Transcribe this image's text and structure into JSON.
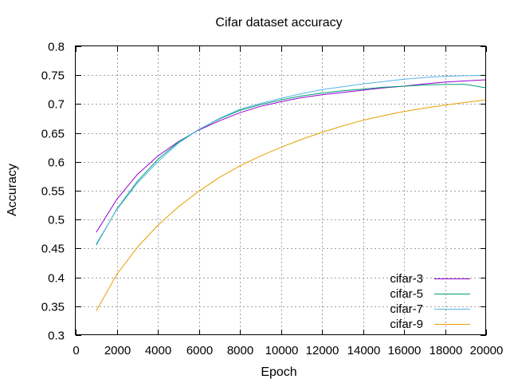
{
  "chart_data": {
    "type": "line",
    "title": "Cifar dataset accuracy",
    "xlabel": "Epoch",
    "ylabel": "Accuracy",
    "xlim": [
      0,
      20000
    ],
    "ylim": [
      0.3,
      0.8
    ],
    "xticks": [
      0,
      2000,
      4000,
      6000,
      8000,
      10000,
      12000,
      14000,
      16000,
      18000,
      20000
    ],
    "yticks": [
      0.3,
      0.35,
      0.4,
      0.45,
      0.5,
      0.55,
      0.6,
      0.65,
      0.7,
      0.75,
      0.8
    ],
    "grid": true,
    "legend_position": "bottom-right",
    "x": [
      1000,
      2000,
      3000,
      4000,
      5000,
      6000,
      7000,
      8000,
      9000,
      10000,
      11000,
      12000,
      13000,
      14000,
      15000,
      16000,
      17000,
      18000,
      19000,
      20000
    ],
    "series": [
      {
        "name": "cifar-3",
        "color": "#9400d3",
        "values": [
          0.478,
          0.535,
          0.578,
          0.61,
          0.635,
          0.655,
          0.671,
          0.685,
          0.696,
          0.704,
          0.711,
          0.716,
          0.72,
          0.724,
          0.728,
          0.731,
          0.735,
          0.738,
          0.74,
          0.742
        ]
      },
      {
        "name": "cifar-5",
        "color": "#009e73",
        "values": [
          0.456,
          0.518,
          0.566,
          0.604,
          0.634,
          0.656,
          0.674,
          0.689,
          0.699,
          0.707,
          0.714,
          0.719,
          0.723,
          0.726,
          0.729,
          0.731,
          0.733,
          0.734,
          0.734,
          0.728
        ]
      },
      {
        "name": "cifar-7",
        "color": "#56b4e9",
        "values": [
          0.458,
          0.517,
          0.563,
          0.6,
          0.632,
          0.656,
          0.675,
          0.691,
          0.701,
          0.71,
          0.718,
          0.725,
          0.73,
          0.735,
          0.739,
          0.743,
          0.746,
          0.748,
          0.749,
          0.75
        ]
      },
      {
        "name": "cifar-9",
        "color": "#e69f00",
        "values": [
          0.342,
          0.405,
          0.452,
          0.49,
          0.522,
          0.549,
          0.573,
          0.593,
          0.61,
          0.625,
          0.639,
          0.651,
          0.662,
          0.672,
          0.68,
          0.687,
          0.693,
          0.698,
          0.703,
          0.707
        ]
      }
    ]
  }
}
